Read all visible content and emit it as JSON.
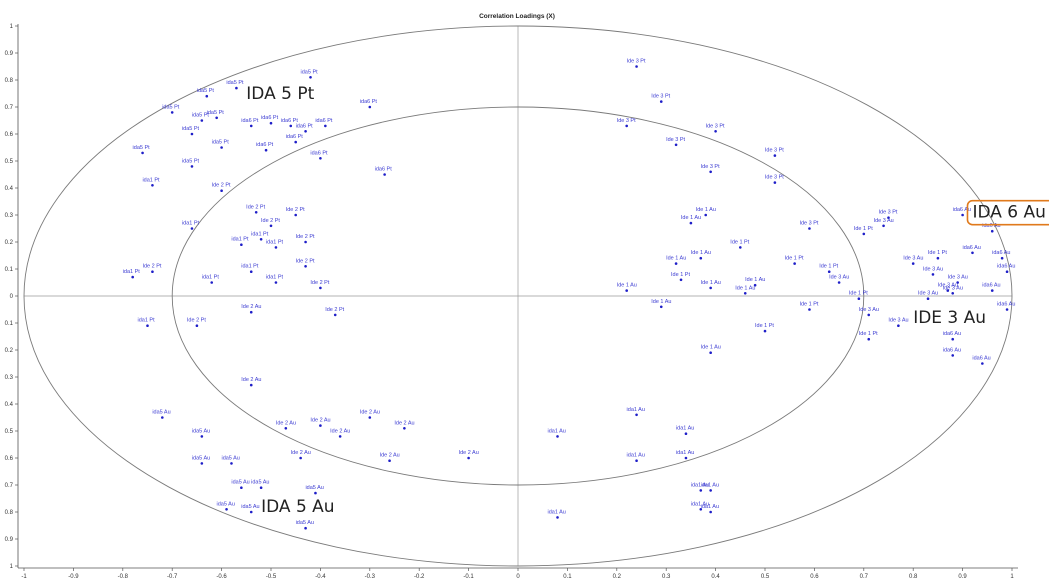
{
  "chart_data": {
    "type": "scatter",
    "title": "Correlation Loadings (X)",
    "xlabel": "",
    "ylabel": "",
    "xlim": [
      -1,
      1
    ],
    "ylim": [
      -1,
      1
    ],
    "x_ticks": [
      "-1",
      "-0.9",
      "-0.8",
      "-0.7",
      "-0.6",
      "-0.5",
      "-0.4",
      "-0.3",
      "-0.2",
      "-0.1",
      "0",
      "0.1",
      "0.2",
      "0.3",
      "0.4",
      "0.5",
      "0.6",
      "0.7",
      "0.8",
      "0.9",
      "1"
    ],
    "y_ticks": [
      {
        "v": 1,
        "t": "1"
      },
      {
        "v": 0.9,
        "t": "0.9"
      },
      {
        "v": 0.8,
        "t": "0.8"
      },
      {
        "v": 0.7,
        "t": "0.7"
      },
      {
        "v": 0.6,
        "t": "0.6"
      },
      {
        "v": 0.5,
        "t": "0.5"
      },
      {
        "v": 0.4,
        "t": "0.4"
      },
      {
        "v": 0.3,
        "t": "0.3"
      },
      {
        "v": 0.2,
        "t": "0.2"
      },
      {
        "v": 0.1,
        "t": "0.1"
      },
      {
        "v": 0,
        "t": "0"
      },
      {
        "v": -0.1,
        "t": "0.1"
      },
      {
        "v": -0.2,
        "t": "0.2"
      },
      {
        "v": -0.3,
        "t": "0.3"
      },
      {
        "v": -0.4,
        "t": "0.4"
      },
      {
        "v": -0.5,
        "t": "0.5"
      },
      {
        "v": -0.6,
        "t": "0.6"
      },
      {
        "v": -0.7,
        "t": "0.7"
      },
      {
        "v": -0.8,
        "t": "0.8"
      },
      {
        "v": -0.9,
        "t": "0.9"
      },
      {
        "v": -1,
        "t": "1"
      }
    ],
    "ellipses": [
      {
        "radius": 1
      },
      {
        "radius": 0.7
      }
    ],
    "point_color": "#1e1ec8",
    "label_color": "#3c3cd2",
    "points": [
      {
        "label": "ida5 Pt",
        "x": -0.42,
        "y": 0.81
      },
      {
        "label": "ida5 Pt",
        "x": -0.57,
        "y": 0.77
      },
      {
        "label": "ida5 Pt",
        "x": -0.63,
        "y": 0.74
      },
      {
        "label": "ida5 Pt",
        "x": -0.7,
        "y": 0.68
      },
      {
        "label": "ida5 Pt",
        "x": -0.61,
        "y": 0.66
      },
      {
        "label": "ida5 Pt",
        "x": -0.64,
        "y": 0.65
      },
      {
        "label": "ida5 Pt",
        "x": -0.66,
        "y": 0.6
      },
      {
        "label": "ida5 Pt",
        "x": -0.6,
        "y": 0.55
      },
      {
        "label": "ida5 Pt",
        "x": -0.76,
        "y": 0.53
      },
      {
        "label": "ida5 Pt",
        "x": -0.66,
        "y": 0.48
      },
      {
        "label": "ida6 Pt",
        "x": -0.3,
        "y": 0.7
      },
      {
        "label": "ida6 Pt",
        "x": -0.54,
        "y": 0.63
      },
      {
        "label": "ida6 Pt",
        "x": -0.5,
        "y": 0.64
      },
      {
        "label": "ida6 Pt",
        "x": -0.46,
        "y": 0.63
      },
      {
        "label": "ida6 Pt",
        "x": -0.39,
        "y": 0.63
      },
      {
        "label": "ida6 Pt",
        "x": -0.43,
        "y": 0.61
      },
      {
        "label": "ida6 Pt",
        "x": -0.45,
        "y": 0.57
      },
      {
        "label": "ida6 Pt",
        "x": -0.51,
        "y": 0.54
      },
      {
        "label": "ida6 Pt",
        "x": -0.4,
        "y": 0.51
      },
      {
        "label": "ida6 Pt",
        "x": -0.27,
        "y": 0.45
      },
      {
        "label": "ida1 Pt",
        "x": -0.74,
        "y": 0.41
      },
      {
        "label": "ida1 Pt",
        "x": -0.66,
        "y": 0.25
      },
      {
        "label": "ida1 Pt",
        "x": -0.56,
        "y": 0.19
      },
      {
        "label": "ida1 Pt",
        "x": -0.52,
        "y": 0.21
      },
      {
        "label": "ida1 Pt",
        "x": -0.49,
        "y": 0.18
      },
      {
        "label": "ida1 Pt",
        "x": -0.54,
        "y": 0.09
      },
      {
        "label": "ida1 Pt",
        "x": -0.49,
        "y": 0.05
      },
      {
        "label": "ida1 Pt",
        "x": -0.62,
        "y": 0.05
      },
      {
        "label": "ida1 Pt",
        "x": -0.78,
        "y": 0.07
      },
      {
        "label": "ida1 Pt",
        "x": -0.75,
        "y": -0.11
      },
      {
        "label": "Ide 2 Pt",
        "x": -0.6,
        "y": 0.39
      },
      {
        "label": "Ide 2 Pt",
        "x": -0.53,
        "y": 0.31
      },
      {
        "label": "Ide 2 Pt",
        "x": -0.45,
        "y": 0.3
      },
      {
        "label": "Ide 2 Pt",
        "x": -0.5,
        "y": 0.26
      },
      {
        "label": "Ide 2 Pt",
        "x": -0.43,
        "y": 0.2
      },
      {
        "label": "Ide 2 Pt",
        "x": -0.43,
        "y": 0.11
      },
      {
        "label": "Ide 2 Pt",
        "x": -0.4,
        "y": 0.03
      },
      {
        "label": "Ide 2 Pt",
        "x": -0.37,
        "y": -0.07
      },
      {
        "label": "Ide 2 Pt",
        "x": -0.74,
        "y": 0.09
      },
      {
        "label": "Ide 2 Pt",
        "x": -0.65,
        "y": -0.11
      },
      {
        "label": "Ide 2 Au",
        "x": -0.54,
        "y": -0.06
      },
      {
        "label": "Ide 2 Au",
        "x": -0.54,
        "y": -0.33
      },
      {
        "label": "Ide 2 Au",
        "x": -0.47,
        "y": -0.49
      },
      {
        "label": "Ide 2 Au",
        "x": -0.4,
        "y": -0.48
      },
      {
        "label": "Ide 2 Au",
        "x": -0.36,
        "y": -0.52
      },
      {
        "label": "Ide 2 Au",
        "x": -0.3,
        "y": -0.45
      },
      {
        "label": "Ide 2 Au",
        "x": -0.23,
        "y": -0.49
      },
      {
        "label": "Ide 2 Au",
        "x": -0.44,
        "y": -0.6
      },
      {
        "label": "Ide 2 Au",
        "x": -0.26,
        "y": -0.61
      },
      {
        "label": "Ide 2 Au",
        "x": -0.1,
        "y": -0.6
      },
      {
        "label": "ida5 Au",
        "x": -0.72,
        "y": -0.45
      },
      {
        "label": "ida5 Au",
        "x": -0.64,
        "y": -0.52
      },
      {
        "label": "ida5 Au",
        "x": -0.64,
        "y": -0.62
      },
      {
        "label": "ida5 Au",
        "x": -0.58,
        "y": -0.62
      },
      {
        "label": "ida5 Au",
        "x": -0.56,
        "y": -0.71
      },
      {
        "label": "ida5 Au",
        "x": -0.52,
        "y": -0.71
      },
      {
        "label": "ida5 Au",
        "x": -0.41,
        "y": -0.73
      },
      {
        "label": "ida5 Au",
        "x": -0.59,
        "y": -0.79
      },
      {
        "label": "ida5 Au",
        "x": -0.54,
        "y": -0.8
      },
      {
        "label": "ida5 Au",
        "x": -0.43,
        "y": -0.86
      },
      {
        "label": "Ide 3 Pt",
        "x": 0.24,
        "y": 0.85
      },
      {
        "label": "Ide 3 Pt",
        "x": 0.29,
        "y": 0.72
      },
      {
        "label": "Ide 3 Pt",
        "x": 0.22,
        "y": 0.63
      },
      {
        "label": "Ide 3 Pt",
        "x": 0.4,
        "y": 0.61
      },
      {
        "label": "Ide 3 Pt",
        "x": 0.32,
        "y": 0.56
      },
      {
        "label": "Ide 3 Pt",
        "x": 0.52,
        "y": 0.52
      },
      {
        "label": "Ide 3 Pt",
        "x": 0.39,
        "y": 0.46
      },
      {
        "label": "Ide 3 Pt",
        "x": 0.52,
        "y": 0.42
      },
      {
        "label": "Ide 3 Pt",
        "x": 0.75,
        "y": 0.29
      },
      {
        "label": "Ide 3 Pt",
        "x": 0.59,
        "y": 0.25
      },
      {
        "label": "Ide 1 Au",
        "x": 0.38,
        "y": 0.3
      },
      {
        "label": "Ide 1 Au",
        "x": 0.35,
        "y": 0.27
      },
      {
        "label": "Ide 1 Au",
        "x": 0.37,
        "y": 0.14
      },
      {
        "label": "Ide 1 Au",
        "x": 0.32,
        "y": 0.12
      },
      {
        "label": "Ide 1 Au",
        "x": 0.22,
        "y": 0.02
      },
      {
        "label": "Ide 1 Au",
        "x": 0.39,
        "y": 0.03
      },
      {
        "label": "Ide 1 Au",
        "x": 0.46,
        "y": 0.01
      },
      {
        "label": "Ide 1 Au",
        "x": 0.48,
        "y": 0.04
      },
      {
        "label": "Ide 1 Au",
        "x": 0.29,
        "y": -0.04
      },
      {
        "label": "Ide 1 Au",
        "x": 0.39,
        "y": -0.21
      },
      {
        "label": "Ide 1 Pt",
        "x": 0.45,
        "y": 0.18
      },
      {
        "label": "Ide 1 Pt",
        "x": 0.56,
        "y": 0.12
      },
      {
        "label": "Ide 1 Pt",
        "x": 0.33,
        "y": 0.06
      },
      {
        "label": "Ide 1 Pt",
        "x": 0.63,
        "y": 0.09
      },
      {
        "label": "Ide 1 Pt",
        "x": 0.69,
        "y": -0.01
      },
      {
        "label": "Ide 1 Pt",
        "x": 0.59,
        "y": -0.05
      },
      {
        "label": "Ide 1 Pt",
        "x": 0.7,
        "y": 0.23
      },
      {
        "label": "Ide 1 Pt",
        "x": 0.71,
        "y": -0.16
      },
      {
        "label": "Ide 1 Pt",
        "x": 0.5,
        "y": -0.13
      },
      {
        "label": "Ide 1 Pt",
        "x": 0.85,
        "y": 0.14
      },
      {
        "label": "Ide 3 Au",
        "x": 0.74,
        "y": 0.26
      },
      {
        "label": "Ide 3 Au",
        "x": 0.8,
        "y": 0.12
      },
      {
        "label": "Ide 3 Au",
        "x": 0.65,
        "y": 0.05
      },
      {
        "label": "Ide 3 Au",
        "x": 0.84,
        "y": 0.08
      },
      {
        "label": "Ide 3 Au",
        "x": 0.88,
        "y": 0.01
      },
      {
        "label": "Ide 3 Au",
        "x": 0.83,
        "y": -0.01
      },
      {
        "label": "Ide 3 Au",
        "x": 0.71,
        "y": -0.07
      },
      {
        "label": "Ide 3 Au",
        "x": 0.77,
        "y": -0.11
      },
      {
        "label": "Ide 3 Au",
        "x": 0.89,
        "y": 0.05
      },
      {
        "label": "Ide 3 Au",
        "x": 0.87,
        "y": 0.02
      },
      {
        "label": "ida6 Au",
        "x": 0.9,
        "y": 0.3
      },
      {
        "label": "ida6 Au",
        "x": 0.96,
        "y": 0.24
      },
      {
        "label": "ida6 Au",
        "x": 0.92,
        "y": 0.16
      },
      {
        "label": "ida6 Au",
        "x": 0.98,
        "y": 0.14
      },
      {
        "label": "ida6 Au",
        "x": 0.99,
        "y": 0.09
      },
      {
        "label": "ida6 Au",
        "x": 0.96,
        "y": 0.02
      },
      {
        "label": "ida6 Au",
        "x": 0.99,
        "y": -0.05
      },
      {
        "label": "ida6 Au",
        "x": 0.88,
        "y": -0.16
      },
      {
        "label": "ida6 Au",
        "x": 0.88,
        "y": -0.22
      },
      {
        "label": "ida6 Au",
        "x": 0.94,
        "y": -0.25
      },
      {
        "label": "ida1 Au",
        "x": 0.08,
        "y": -0.52
      },
      {
        "label": "ida1 Au",
        "x": 0.24,
        "y": -0.44
      },
      {
        "label": "ida1 Au",
        "x": 0.34,
        "y": -0.51
      },
      {
        "label": "ida1 Au",
        "x": 0.24,
        "y": -0.61
      },
      {
        "label": "ida1 Au",
        "x": 0.34,
        "y": -0.6
      },
      {
        "label": "ida1 Au",
        "x": 0.37,
        "y": -0.72
      },
      {
        "label": "ida1 Au",
        "x": 0.39,
        "y": -0.72
      },
      {
        "label": "ida1 Au",
        "x": 0.37,
        "y": -0.79
      },
      {
        "label": "ida1 Au",
        "x": 0.39,
        "y": -0.8
      },
      {
        "label": "ida1 Au",
        "x": 0.08,
        "y": -0.82
      }
    ],
    "annotations": [
      {
        "text": "IDA 5 Pt",
        "x": -0.55,
        "y": 0.73,
        "boxed": false
      },
      {
        "text": "IDA 6 Au",
        "x": 0.92,
        "y": 0.29,
        "boxed": true,
        "box_color": "#e07a1c"
      },
      {
        "text": "IDE 3 Au",
        "x": 0.8,
        "y": -0.1,
        "boxed": false
      },
      {
        "text": "IDA 5 Au",
        "x": -0.52,
        "y": -0.8,
        "boxed": false
      }
    ]
  }
}
